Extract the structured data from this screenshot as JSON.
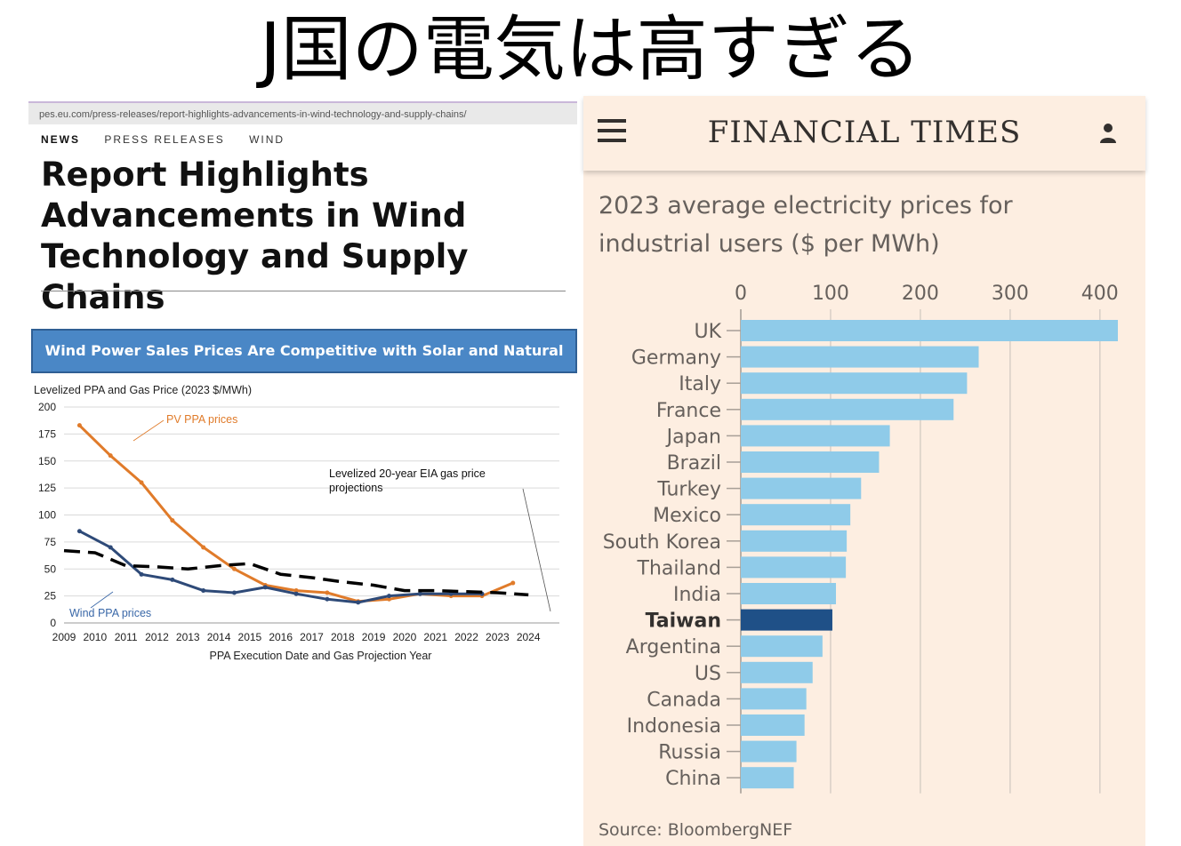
{
  "slide_title": "J国の電気は高すぎる",
  "left": {
    "url": "pes.eu.com/press-releases/report-highlights-advancements-in-wind-technology-and-supply-chains/",
    "breadcrumbs": [
      "NEWS",
      "PRESS RELEASES",
      "WIND"
    ],
    "article_title_lines": [
      "Report Highlights",
      "Advancements in Wind",
      "Technology and Supply Chains"
    ],
    "banner": "Wind Power Sales Prices Are Competitive with Solar and Natural Gas"
  },
  "right": {
    "logo": "FINANCIAL TIMES",
    "menu_icon": "hamburger-menu-icon",
    "account_icon": "user-account-icon"
  },
  "chart_data": [
    {
      "type": "line",
      "title": "Levelized PPA and Gas Price (2023 $/MWh)",
      "xlabel": "PPA Execution Date and Gas Projection Year",
      "ylim": [
        0,
        200
      ],
      "yticks": [
        0,
        25,
        50,
        75,
        100,
        125,
        150,
        175,
        200
      ],
      "xticks": [
        "2009",
        "2010",
        "2011",
        "2012",
        "2013",
        "2014",
        "2015",
        "2016",
        "2017",
        "2018",
        "2019",
        "2020",
        "2021",
        "2022",
        "2023",
        "2024"
      ],
      "grid": true,
      "series": [
        {
          "name": "PV PPA prices",
          "color": "#e07b2a",
          "x": [
            2009.5,
            2010.5,
            2011.5,
            2012.5,
            2013.5,
            2014.5,
            2015.5,
            2016.5,
            2017.5,
            2018.5,
            2019.5,
            2020.5,
            2021.5,
            2022.5,
            2023.5
          ],
          "y": [
            183,
            155,
            130,
            95,
            70,
            50,
            35,
            30,
            28,
            20,
            22,
            27,
            25,
            25,
            37
          ]
        },
        {
          "name": "Wind PPA prices",
          "color": "#2e4a78",
          "x": [
            2009.5,
            2010.5,
            2011.5,
            2012.5,
            2013.5,
            2014.5,
            2015.5,
            2016.5,
            2017.5,
            2018.5,
            2019.5,
            2020.5,
            2021.5,
            2022.5
          ],
          "y": [
            85,
            70,
            45,
            40,
            30,
            28,
            33,
            27,
            22,
            19,
            25,
            27,
            27,
            27
          ]
        },
        {
          "name": "Levelized 20-year EIA gas price projections",
          "color": "#000000",
          "dashed": true,
          "x": [
            2009,
            2010,
            2011,
            2012,
            2013,
            2014,
            2015,
            2016,
            2017,
            2018,
            2019,
            2020,
            2021,
            2022,
            2023,
            2024
          ],
          "y": [
            67,
            65,
            53,
            52,
            50,
            53,
            55,
            45,
            42,
            38,
            35,
            30,
            30,
            29,
            28,
            26
          ]
        }
      ],
      "annotations": [
        "PV PPA prices",
        "Levelized 20-year EIA gas price projections",
        "Wind PPA prices"
      ]
    },
    {
      "type": "bar",
      "orientation": "horizontal",
      "title": "2023 average electricity prices for industrial users ($ per MWh)",
      "source": "Source: BloombergNEF",
      "xlim": [
        0,
        420
      ],
      "xticks": [
        0,
        100,
        200,
        300,
        400
      ],
      "grid": true,
      "categories": [
        "UK",
        "Germany",
        "Italy",
        "France",
        "Japan",
        "Brazil",
        "Turkey",
        "Mexico",
        "South Korea",
        "Thailand",
        "India",
        "Taiwan",
        "Argentina",
        "US",
        "Canada",
        "Indonesia",
        "Russia",
        "China"
      ],
      "values": [
        420,
        265,
        252,
        237,
        166,
        154,
        134,
        122,
        118,
        117,
        106,
        102,
        91,
        80,
        73,
        71,
        62,
        59
      ],
      "highlight": "Taiwan",
      "colors": {
        "bar": "#8fcbe9",
        "highlight": "#1f5087",
        "grid": "#d8cfc6",
        "text": "#66605c",
        "axis": "#a79f97"
      }
    }
  ]
}
